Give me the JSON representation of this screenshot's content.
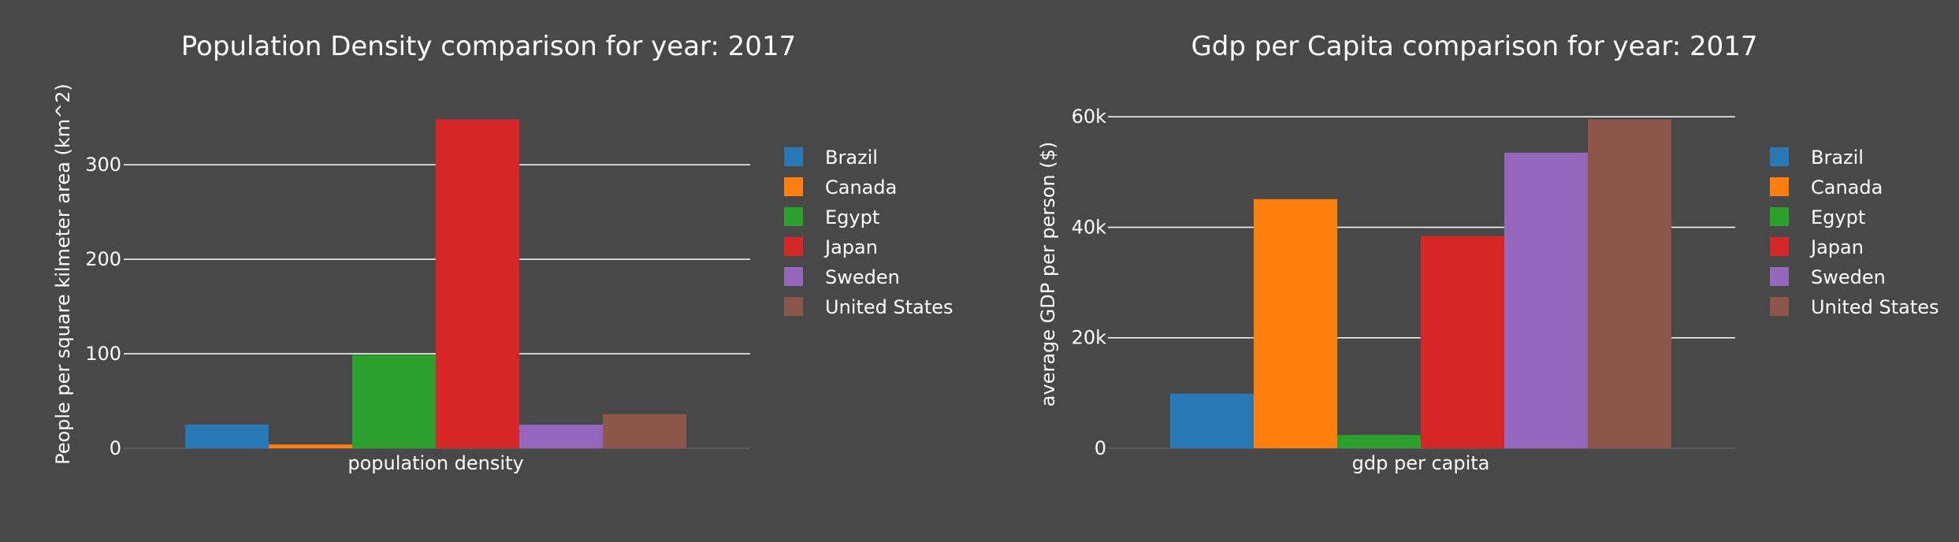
{
  "colors": {
    "background": "#484848",
    "series": [
      "#2878b5",
      "#ff7f0e",
      "#2ca02c",
      "#d62728",
      "#9467bd",
      "#8c564b"
    ]
  },
  "chart_data": [
    {
      "type": "bar",
      "title": "Population Density comparison for year: 2017",
      "xlabel": "population density",
      "ylabel": "People per square kilmeter area (km^2)",
      "categories": [
        "population density"
      ],
      "series": [
        {
          "name": "Brazil",
          "values": [
            25
          ]
        },
        {
          "name": "Canada",
          "values": [
            4
          ]
        },
        {
          "name": "Egypt",
          "values": [
            99
          ]
        },
        {
          "name": "Japan",
          "values": [
            348
          ]
        },
        {
          "name": "Sweden",
          "values": [
            25
          ]
        },
        {
          "name": "United States",
          "values": [
            36
          ]
        }
      ],
      "ylim": [
        0,
        366
      ],
      "yticks": [
        0,
        100,
        200,
        300
      ],
      "ytick_labels": [
        "0",
        "100",
        "200",
        "300"
      ],
      "grid": true,
      "legend_position": "right"
    },
    {
      "type": "bar",
      "title": "Gdp per Capita comparison for year: 2017",
      "xlabel": "gdp per capita",
      "ylabel": "average GDP per person ($)",
      "categories": [
        "gdp per capita"
      ],
      "series": [
        {
          "name": "Brazil",
          "values": [
            9900
          ]
        },
        {
          "name": "Canada",
          "values": [
            45100
          ]
        },
        {
          "name": "Egypt",
          "values": [
            2400
          ]
        },
        {
          "name": "Japan",
          "values": [
            38400
          ]
        },
        {
          "name": "Sweden",
          "values": [
            53500
          ]
        },
        {
          "name": "United States",
          "values": [
            59500
          ]
        }
      ],
      "ylim": [
        0,
        62600
      ],
      "yticks": [
        0,
        20000,
        40000,
        60000
      ],
      "ytick_labels": [
        "0",
        "20k",
        "40k",
        "60k"
      ],
      "grid": true,
      "legend_position": "right"
    }
  ]
}
